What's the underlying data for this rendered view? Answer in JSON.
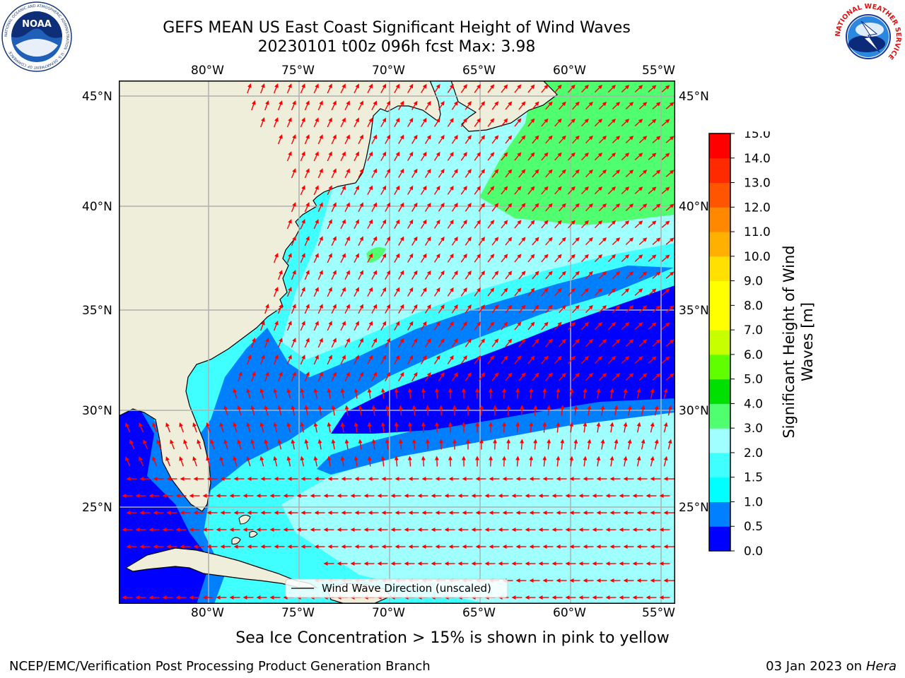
{
  "title": {
    "line1": "GEFS MEAN US East Coast Significant Height of Wind Waves",
    "line2": "20230101 t00z 096h fcst   Max: 3.98"
  },
  "map": {
    "lon_labels": [
      "80°W",
      "75°W",
      "70°W",
      "65°W",
      "60°W",
      "55°W"
    ],
    "lat_labels": [
      "45°N",
      "40°N",
      "35°N",
      "30°N",
      "25°N"
    ],
    "legend_label": "Wind Wave Direction (unscaled)",
    "subtitle": "Sea Ice Concentration > 15% is shown in pink to yellow",
    "colors": {
      "land": "#efeedb",
      "coast": "#000000",
      "grid": "#b0b0b0",
      "arrow": "#ff0000"
    }
  },
  "colorbar": {
    "label_line1": "Significant Height of Wind",
    "label_line2": "Waves [m]",
    "ticks": [
      "0.0",
      "0.5",
      "1.0",
      "1.5",
      "2.0",
      "3.0",
      "4.0",
      "5.0",
      "6.0",
      "7.0",
      "8.0",
      "9.0",
      "10.0",
      "11.0",
      "12.0",
      "13.0",
      "14.0",
      "15.0"
    ],
    "colors": [
      "#0000ff",
      "#0080ff",
      "#00ffff",
      "#40ffff",
      "#a0ffff",
      "#50ff70",
      "#00e000",
      "#60ff00",
      "#c8ff00",
      "#ffff00",
      "#ffff00",
      "#ffe000",
      "#ffb000",
      "#ff8800",
      "#ff5500",
      "#ff2a00",
      "#ff0000"
    ]
  },
  "footer": {
    "left": "NCEP/EMC/Verification Post Processing Product Generation Branch",
    "right_date": "03 Jan 2023 on",
    "right_host": "Hera"
  },
  "logos": {
    "left_text": "NOAA",
    "left_ring": "NATIONAL OCEANIC AND ATMOSPHERIC ADMINISTRATION · U.S. DEPARTMENT OF COMMERCE",
    "right_ring": "NATIONAL WEATHER SERVICE"
  },
  "icons": {
    "left_logo": "noaa-logo-icon",
    "right_logo": "nws-logo-icon"
  }
}
